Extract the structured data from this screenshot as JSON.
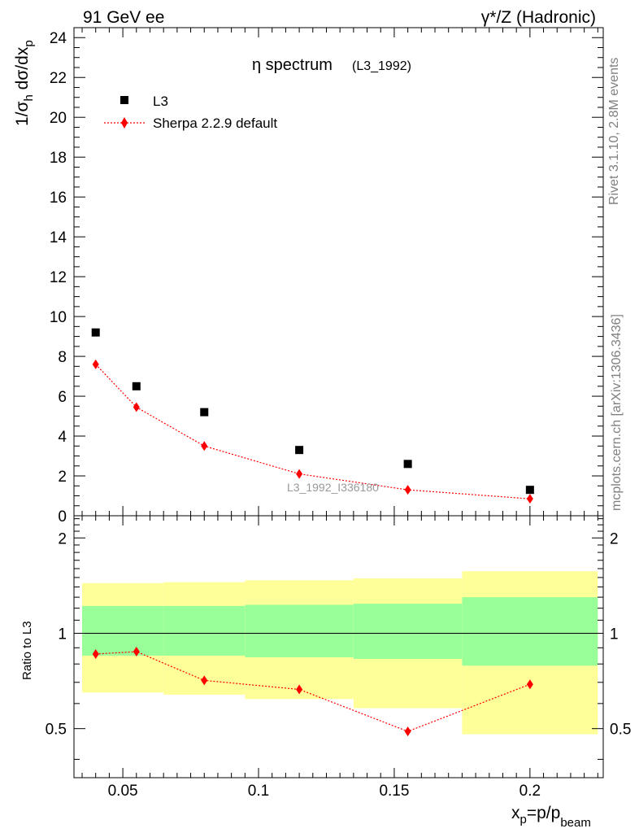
{
  "header": {
    "left": "91 GeV ee",
    "right": "γ*/Z (Hadronic)"
  },
  "side_labels": {
    "rivet": "Rivet 3.1.10,  2.8M events",
    "mcplots": "mcplots.cern.ch [arXiv:1306.3436]"
  },
  "chart_data": {
    "type": "scatter",
    "title_main": "η spectrum",
    "title_sub": "(L3_1992)",
    "watermark": "L3_1992_I336180",
    "ylabel_parts": [
      "1/σ",
      "h",
      " dσ/dx",
      "p"
    ],
    "xlabel_parts": [
      "x",
      "p",
      "=p/p",
      "beam"
    ],
    "ratio_ylabel": "Ratio to L3",
    "xlim": [
      0.032,
      0.227
    ],
    "ylim": [
      0,
      24.5
    ],
    "ratio_ylim": [
      0.35,
      2.35
    ],
    "x_ticks": [
      0.05,
      0.1,
      0.15,
      0.2
    ],
    "x_tick_labels": [
      "0.05",
      "0.1",
      "0.15",
      "0.2"
    ],
    "y_ticks": [
      0,
      2,
      4,
      6,
      8,
      10,
      12,
      14,
      16,
      18,
      20,
      22,
      24
    ],
    "y_tick_labels": [
      "0",
      "2",
      "4",
      "6",
      "8",
      "10",
      "12",
      "14",
      "16",
      "18",
      "20",
      "22",
      "24"
    ],
    "ratio_ticks": [
      0.5,
      1,
      2
    ],
    "ratio_tick_labels": [
      "0.5",
      "1",
      "2"
    ],
    "series": [
      {
        "name": "L3",
        "marker": "square",
        "color": "#000000",
        "x": [
          0.04,
          0.055,
          0.08,
          0.115,
          0.155,
          0.2
        ],
        "y": [
          9.2,
          6.5,
          5.2,
          3.3,
          2.6,
          1.3
        ]
      },
      {
        "name": "Sherpa 2.2.9 default",
        "marker": "diamond",
        "line": "dotted",
        "color": "#ff0000",
        "x": [
          0.04,
          0.055,
          0.08,
          0.115,
          0.155,
          0.2
        ],
        "y": [
          7.6,
          5.45,
          3.5,
          2.1,
          1.3,
          0.85
        ]
      }
    ],
    "ratio": {
      "x": [
        0.04,
        0.055,
        0.08,
        0.115,
        0.155,
        0.2
      ],
      "y": [
        0.86,
        0.875,
        0.71,
        0.665,
        0.49,
        0.69
      ]
    },
    "bands": [
      {
        "x0": 0.035,
        "x1": 0.065,
        "yellow": [
          0.65,
          1.44
        ],
        "green": [
          0.85,
          1.22
        ]
      },
      {
        "x0": 0.065,
        "x1": 0.095,
        "yellow": [
          0.64,
          1.45
        ],
        "green": [
          0.85,
          1.22
        ]
      },
      {
        "x0": 0.095,
        "x1": 0.135,
        "yellow": [
          0.62,
          1.47
        ],
        "green": [
          0.84,
          1.23
        ]
      },
      {
        "x0": 0.135,
        "x1": 0.175,
        "yellow": [
          0.58,
          1.49
        ],
        "green": [
          0.83,
          1.24
        ]
      },
      {
        "x0": 0.175,
        "x1": 0.225,
        "yellow": [
          0.48,
          1.57
        ],
        "green": [
          0.79,
          1.3
        ]
      }
    ],
    "colors": {
      "band_yellow": "#ffff99",
      "band_green": "#99ff99",
      "data": "#000000",
      "mc": "#ff0000",
      "watermark": "#999999"
    }
  }
}
